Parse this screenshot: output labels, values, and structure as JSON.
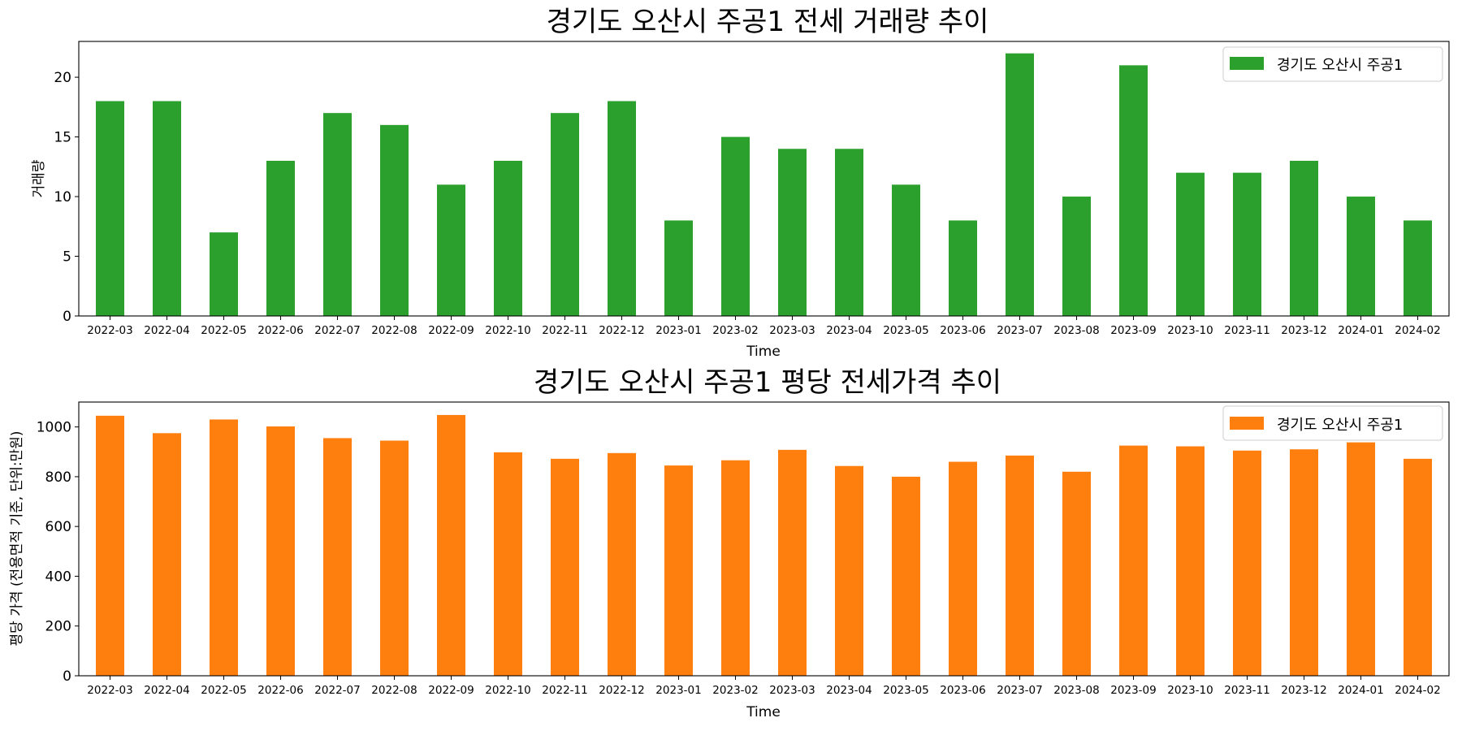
{
  "chart_data": [
    {
      "type": "bar",
      "title": "경기도 오산시 주공1 전세 거래량 추이",
      "xlabel": "Time",
      "ylabel": "거래량",
      "ylim": [
        0,
        23
      ],
      "yticks": [
        0,
        5,
        10,
        15,
        20
      ],
      "legend_position": "top-right",
      "grid": false,
      "categories": [
        "2022-03",
        "2022-04",
        "2022-05",
        "2022-06",
        "2022-07",
        "2022-08",
        "2022-09",
        "2022-10",
        "2022-11",
        "2022-12",
        "2023-01",
        "2023-02",
        "2023-03",
        "2023-04",
        "2023-05",
        "2023-06",
        "2023-07",
        "2023-08",
        "2023-09",
        "2023-10",
        "2023-11",
        "2023-12",
        "2024-01",
        "2024-02"
      ],
      "series": [
        {
          "name": "경기도 오산시 주공1",
          "color": "#2ca02c",
          "values": [
            18,
            18,
            7,
            13,
            17,
            16,
            11,
            13,
            17,
            18,
            8,
            15,
            14,
            14,
            11,
            8,
            22,
            10,
            21,
            12,
            12,
            13,
            10,
            8
          ]
        }
      ]
    },
    {
      "type": "bar",
      "title": "경기도 오산시 주공1 평당 전세가격 추이",
      "xlabel": "Time",
      "ylabel": "평당 가격 (전용면적 기준, 단위:만원)",
      "ylim": [
        0,
        1100
      ],
      "yticks": [
        0,
        200,
        400,
        600,
        800,
        1000
      ],
      "legend_position": "top-right",
      "grid": false,
      "categories": [
        "2022-03",
        "2022-04",
        "2022-05",
        "2022-06",
        "2022-07",
        "2022-08",
        "2022-09",
        "2022-10",
        "2022-11",
        "2022-12",
        "2023-01",
        "2023-02",
        "2023-03",
        "2023-04",
        "2023-05",
        "2023-06",
        "2023-07",
        "2023-08",
        "2023-09",
        "2023-10",
        "2023-11",
        "2023-12",
        "2024-01",
        "2024-02"
      ],
      "series": [
        {
          "name": "경기도 오산시 주공1",
          "color": "#ff7f0e",
          "values": [
            1045,
            975,
            1030,
            1002,
            955,
            945,
            1048,
            898,
            872,
            895,
            845,
            866,
            908,
            843,
            800,
            860,
            885,
            820,
            925,
            922,
            905,
            910,
            938,
            872
          ]
        }
      ]
    }
  ]
}
